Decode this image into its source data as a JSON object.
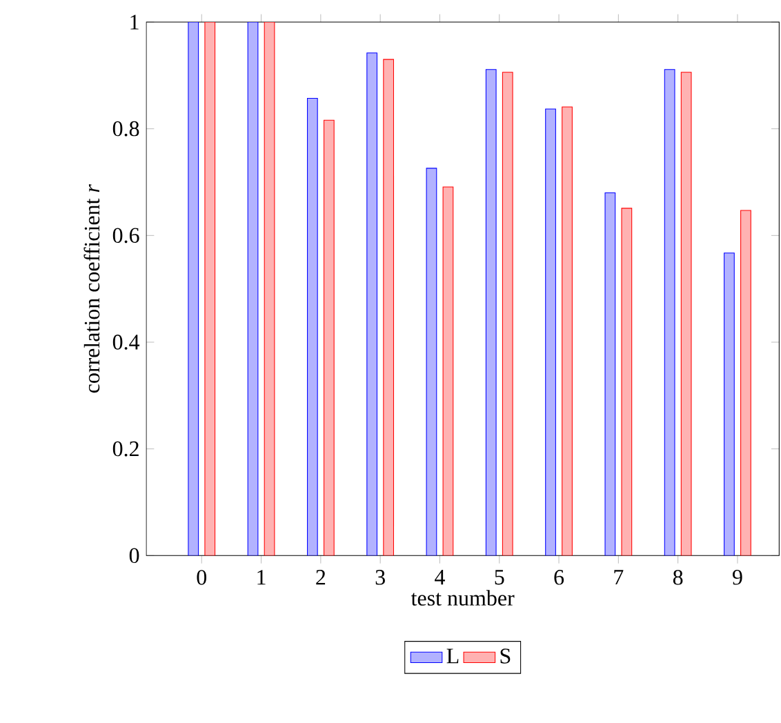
{
  "chart_data": {
    "type": "bar",
    "xlabel": "test number",
    "ylabel": "correlation coefficient *r*",
    "categories": [
      "0",
      "1",
      "2",
      "3",
      "4",
      "5",
      "6",
      "7",
      "8",
      "9"
    ],
    "series": [
      {
        "name": "L",
        "color": "#0000ff",
        "values": [
          1,
          1,
          0.857,
          0.942,
          0.726,
          0.911,
          0.837,
          0.68,
          0.911,
          0.567
        ]
      },
      {
        "name": "S",
        "color": "#ff0000",
        "values": [
          1,
          1,
          0.816,
          0.93,
          0.691,
          0.906,
          0.841,
          0.651,
          0.906,
          0.647
        ]
      }
    ],
    "ylim": [
      0,
      1
    ],
    "yticks": [
      0,
      0.2,
      0.4,
      0.6,
      0.8,
      1
    ],
    "grid": false,
    "legend": "bottom"
  }
}
